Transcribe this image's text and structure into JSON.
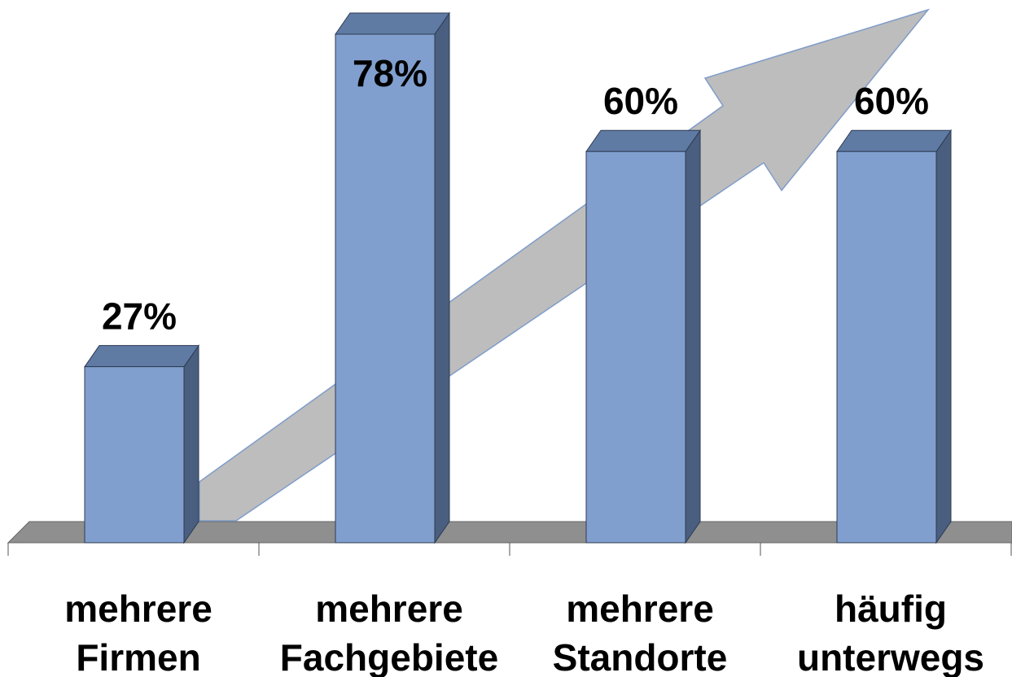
{
  "chart_data": {
    "type": "bar",
    "style": "3d-column",
    "categories": [
      [
        "mehrere",
        "Firmen"
      ],
      [
        "mehrere",
        "Fachgebiete"
      ],
      [
        "mehrere",
        "Standorte"
      ],
      [
        "häufig",
        "unterwegs"
      ]
    ],
    "values": [
      27,
      78,
      60,
      60
    ],
    "data_labels": [
      "27%",
      "78%",
      "60%",
      "60%"
    ],
    "ylim": [
      0,
      78
    ],
    "grid": false,
    "legend": "none",
    "decoration": "upward-trend-arrow",
    "colors": {
      "bar_front": "#819fce",
      "bar_top": "#5f7ba4",
      "bar_side": "#4a5e80",
      "bar_edge": "#2d3b52",
      "floor": "#8f8f8f",
      "arrow": "#bdbdbd",
      "arrow_edge": "#7f9cc9"
    }
  }
}
